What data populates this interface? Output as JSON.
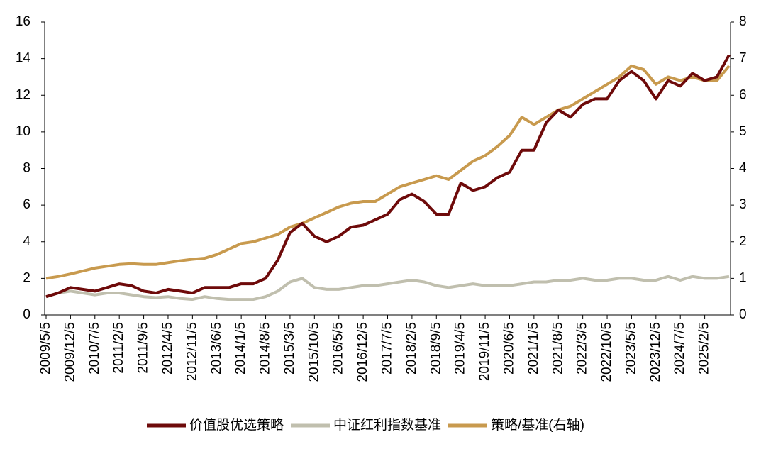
{
  "chart_data": {
    "type": "line",
    "categories": [
      "2009/5/5",
      null,
      "2009/12/5",
      null,
      "2010/7/5",
      null,
      "2011/2/5",
      null,
      "2011/9/5",
      null,
      "2012/4/5",
      null,
      "2012/11/5",
      null,
      "2013/6/5",
      null,
      "2014/1/5",
      null,
      "2014/8/5",
      null,
      "2015/3/5",
      null,
      "2015/10/5",
      null,
      "2016/5/5",
      null,
      "2016/12/5",
      null,
      "2017/7/5",
      null,
      "2018/2/5",
      null,
      "2018/9/5",
      null,
      "2019/4/5",
      null,
      "2019/11/5",
      null,
      "2020/6/5",
      null,
      "2021/1/5",
      null,
      "2021/8/5",
      null,
      "2022/3/5",
      null,
      "2022/10/5",
      null,
      "2023/5/5",
      null,
      "2023/12/5",
      null,
      "2024/7/5",
      null,
      "2025/2/5",
      null,
      null
    ],
    "series": [
      {
        "name": "价值股优选策略",
        "color": "#6e0a0a",
        "values": [
          1.0,
          1.2,
          1.5,
          1.4,
          1.3,
          1.5,
          1.7,
          1.6,
          1.3,
          1.2,
          1.4,
          1.3,
          1.2,
          1.5,
          1.5,
          1.5,
          1.7,
          1.7,
          2.0,
          3.0,
          4.5,
          5.0,
          4.3,
          4.0,
          4.3,
          4.8,
          4.9,
          5.2,
          5.5,
          6.3,
          6.6,
          6.2,
          5.5,
          5.5,
          7.2,
          6.8,
          7.0,
          7.5,
          7.8,
          9.0,
          9.0,
          10.5,
          11.2,
          10.8,
          11.5,
          11.8,
          11.8,
          12.8,
          13.3,
          12.8,
          11.8,
          12.8,
          12.5,
          13.2,
          12.8,
          13.0,
          14.2
        ]
      },
      {
        "name": "中证红利指数基准",
        "color": "#c0bfae",
        "values": [
          1.0,
          1.2,
          1.3,
          1.2,
          1.1,
          1.2,
          1.2,
          1.1,
          1.0,
          0.95,
          1.0,
          0.9,
          0.85,
          1.0,
          0.9,
          0.85,
          0.85,
          0.85,
          1.0,
          1.3,
          1.8,
          2.0,
          1.5,
          1.4,
          1.4,
          1.5,
          1.6,
          1.6,
          1.7,
          1.8,
          1.9,
          1.8,
          1.6,
          1.5,
          1.6,
          1.7,
          1.6,
          1.6,
          1.6,
          1.7,
          1.8,
          1.8,
          1.9,
          1.9,
          2.0,
          1.9,
          1.9,
          2.0,
          2.0,
          1.9,
          1.9,
          2.1,
          1.9,
          2.1,
          2.0,
          2.0,
          2.1
        ]
      },
      {
        "name": "策略/基准(右轴)",
        "color": "#c89a4e",
        "axis": "y2",
        "values": [
          1.0,
          1.05,
          1.12,
          1.2,
          1.28,
          1.33,
          1.38,
          1.4,
          1.38,
          1.38,
          1.43,
          1.48,
          1.52,
          1.55,
          1.65,
          1.8,
          1.95,
          2.0,
          2.1,
          2.2,
          2.4,
          2.5,
          2.65,
          2.8,
          2.95,
          3.05,
          3.1,
          3.1,
          3.3,
          3.5,
          3.6,
          3.7,
          3.8,
          3.7,
          3.95,
          4.2,
          4.35,
          4.6,
          4.9,
          5.4,
          5.2,
          5.4,
          5.6,
          5.7,
          5.9,
          6.1,
          6.3,
          6.5,
          6.8,
          6.7,
          6.3,
          6.5,
          6.4,
          6.5,
          6.4,
          6.4,
          6.8
        ]
      }
    ],
    "ylim": [
      0,
      16
    ],
    "yticks": [
      0,
      2,
      4,
      6,
      8,
      10,
      12,
      14,
      16
    ],
    "y2lim": [
      0,
      8
    ],
    "y2ticks": [
      0,
      1,
      2,
      3,
      4,
      5,
      6,
      7,
      8
    ],
    "legend": "bottom"
  }
}
